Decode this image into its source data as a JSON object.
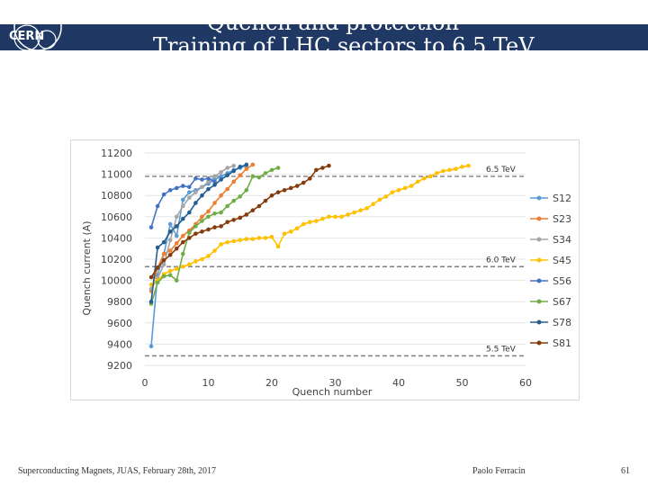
{
  "header": {
    "title": "Quench and protection",
    "subtitle": "Training of LHC sectors to 6.5 TeV",
    "logo_text": "CERN",
    "background": "#1f3864"
  },
  "footer": {
    "left": "Superconducting Magnets, JUAS, February 28th, 2017",
    "center": "Paolo Ferracin",
    "right": "61"
  },
  "chart_data": {
    "type": "line",
    "xlabel": "Quench number",
    "ylabel": "Quench current (A)",
    "xlim": [
      0,
      60
    ],
    "ylim": [
      9200,
      11200
    ],
    "xticks": [
      0,
      10,
      20,
      30,
      40,
      50,
      60
    ],
    "yticks": [
      9200,
      9400,
      9600,
      9800,
      10000,
      10200,
      10400,
      10600,
      10800,
      11000,
      11200
    ],
    "legend_position": "right",
    "reference_lines": [
      {
        "label": "6.5 TeV",
        "y": 10980
      },
      {
        "label": "6.0 TeV",
        "y": 10130
      },
      {
        "label": "5.5 TeV",
        "y": 9290
      }
    ],
    "series": [
      {
        "name": "S12",
        "color": "#5b9bd5",
        "x": [
          1,
          2,
          3,
          4,
          5,
          6,
          7,
          8,
          9,
          10,
          11,
          12,
          13,
          14,
          15,
          16
        ],
        "y": [
          9380,
          10050,
          10250,
          10530,
          10420,
          10760,
          10830,
          10850,
          10880,
          10910,
          10950,
          10980,
          11010,
          11040,
          11060,
          11080
        ]
      },
      {
        "name": "S23",
        "color": "#ed7d31",
        "x": [
          1,
          2,
          3,
          4,
          5,
          6,
          7,
          8,
          9,
          10,
          11,
          12,
          13,
          14,
          15,
          16,
          17
        ],
        "y": [
          9900,
          10120,
          10250,
          10280,
          10350,
          10420,
          10470,
          10530,
          10600,
          10650,
          10730,
          10800,
          10860,
          10930,
          10990,
          11050,
          11090
        ]
      },
      {
        "name": "S34",
        "color": "#a5a5a5",
        "x": [
          1,
          2,
          3,
          4,
          5,
          6,
          7,
          8,
          9,
          10,
          11,
          12,
          13,
          14
        ],
        "y": [
          9920,
          10020,
          10150,
          10380,
          10600,
          10700,
          10780,
          10830,
          10880,
          10930,
          10980,
          11020,
          11060,
          11080
        ]
      },
      {
        "name": "S45",
        "color": "#ffc000",
        "x": [
          1,
          2,
          3,
          4,
          5,
          6,
          7,
          8,
          9,
          10,
          11,
          12,
          13,
          14,
          15,
          16,
          17,
          18,
          19,
          20,
          21,
          22,
          23,
          24,
          25,
          26,
          27,
          28,
          29,
          30,
          31,
          32,
          33,
          34,
          35,
          36,
          37,
          38,
          39,
          40,
          41,
          42,
          43,
          44,
          45,
          46,
          47,
          48,
          49,
          50,
          51
        ],
        "y": [
          9960,
          10000,
          10060,
          10090,
          10110,
          10130,
          10150,
          10180,
          10200,
          10230,
          10280,
          10340,
          10360,
          10370,
          10380,
          10390,
          10390,
          10400,
          10400,
          10410,
          10320,
          10440,
          10460,
          10490,
          10530,
          10550,
          10560,
          10580,
          10600,
          10600,
          10600,
          10620,
          10640,
          10660,
          10680,
          10720,
          10760,
          10790,
          10830,
          10850,
          10870,
          10890,
          10930,
          10960,
          10980,
          11010,
          11030,
          11040,
          11050,
          11070,
          11080
        ]
      },
      {
        "name": "S56",
        "color": "#4472c4",
        "x": [
          1,
          2,
          3,
          4,
          5,
          6,
          7,
          8,
          9,
          10,
          11
        ],
        "y": [
          10500,
          10700,
          10810,
          10850,
          10870,
          10890,
          10880,
          10960,
          10950,
          10960,
          10930
        ]
      },
      {
        "name": "S67",
        "color": "#70ad47",
        "x": [
          1,
          2,
          3,
          4,
          5,
          6,
          7,
          8,
          9,
          10,
          11,
          12,
          13,
          14,
          15,
          16,
          17,
          18,
          19,
          20,
          21
        ],
        "y": [
          9780,
          9980,
          10040,
          10050,
          10000,
          10250,
          10450,
          10510,
          10560,
          10600,
          10630,
          10640,
          10700,
          10750,
          10790,
          10850,
          10980,
          10970,
          11010,
          11040,
          11060
        ]
      },
      {
        "name": "S78",
        "color": "#255e91",
        "x": [
          1,
          2,
          3,
          4,
          5,
          6,
          7,
          8,
          9,
          10,
          11,
          12,
          13,
          14,
          15,
          16
        ],
        "y": [
          9800,
          10310,
          10360,
          10460,
          10510,
          10580,
          10640,
          10730,
          10800,
          10860,
          10900,
          10950,
          10990,
          11030,
          11070,
          11090
        ]
      },
      {
        "name": "S81",
        "color": "#843c0c",
        "x": [
          1,
          2,
          3,
          4,
          5,
          6,
          7,
          8,
          9,
          10,
          11,
          12,
          13,
          14,
          15,
          16,
          17,
          18,
          19,
          20,
          21,
          22,
          23,
          24,
          25,
          26,
          27,
          28,
          29
        ],
        "y": [
          10030,
          10120,
          10190,
          10240,
          10300,
          10360,
          10400,
          10440,
          10460,
          10480,
          10500,
          10510,
          10550,
          10570,
          10590,
          10620,
          10660,
          10700,
          10750,
          10800,
          10830,
          10850,
          10870,
          10890,
          10920,
          10960,
          11040,
          11060,
          11080
        ]
      }
    ]
  }
}
